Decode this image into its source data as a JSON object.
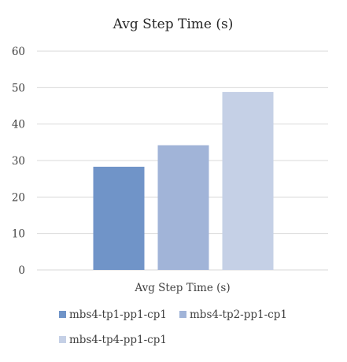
{
  "chart_data": {
    "type": "bar",
    "title": "Avg Step Time (s)",
    "categories": [
      "Avg Step Time (s)"
    ],
    "series": [
      {
        "name": "mbs4-tp1-pp1-cp1",
        "values": [
          28.3
        ],
        "color": "#7094c8"
      },
      {
        "name": "mbs4-tp2-pp1-cp1",
        "values": [
          34.2
        ],
        "color": "#a1b4d8"
      },
      {
        "name": "mbs4-tp4-pp1-cp1",
        "values": [
          48.8
        ],
        "color": "#c5d0e6"
      }
    ],
    "ylim": [
      0,
      60
    ],
    "yticks": [
      "0",
      "10",
      "20",
      "30",
      "40",
      "50",
      "60"
    ],
    "grid": true,
    "legend_position": "bottom"
  }
}
